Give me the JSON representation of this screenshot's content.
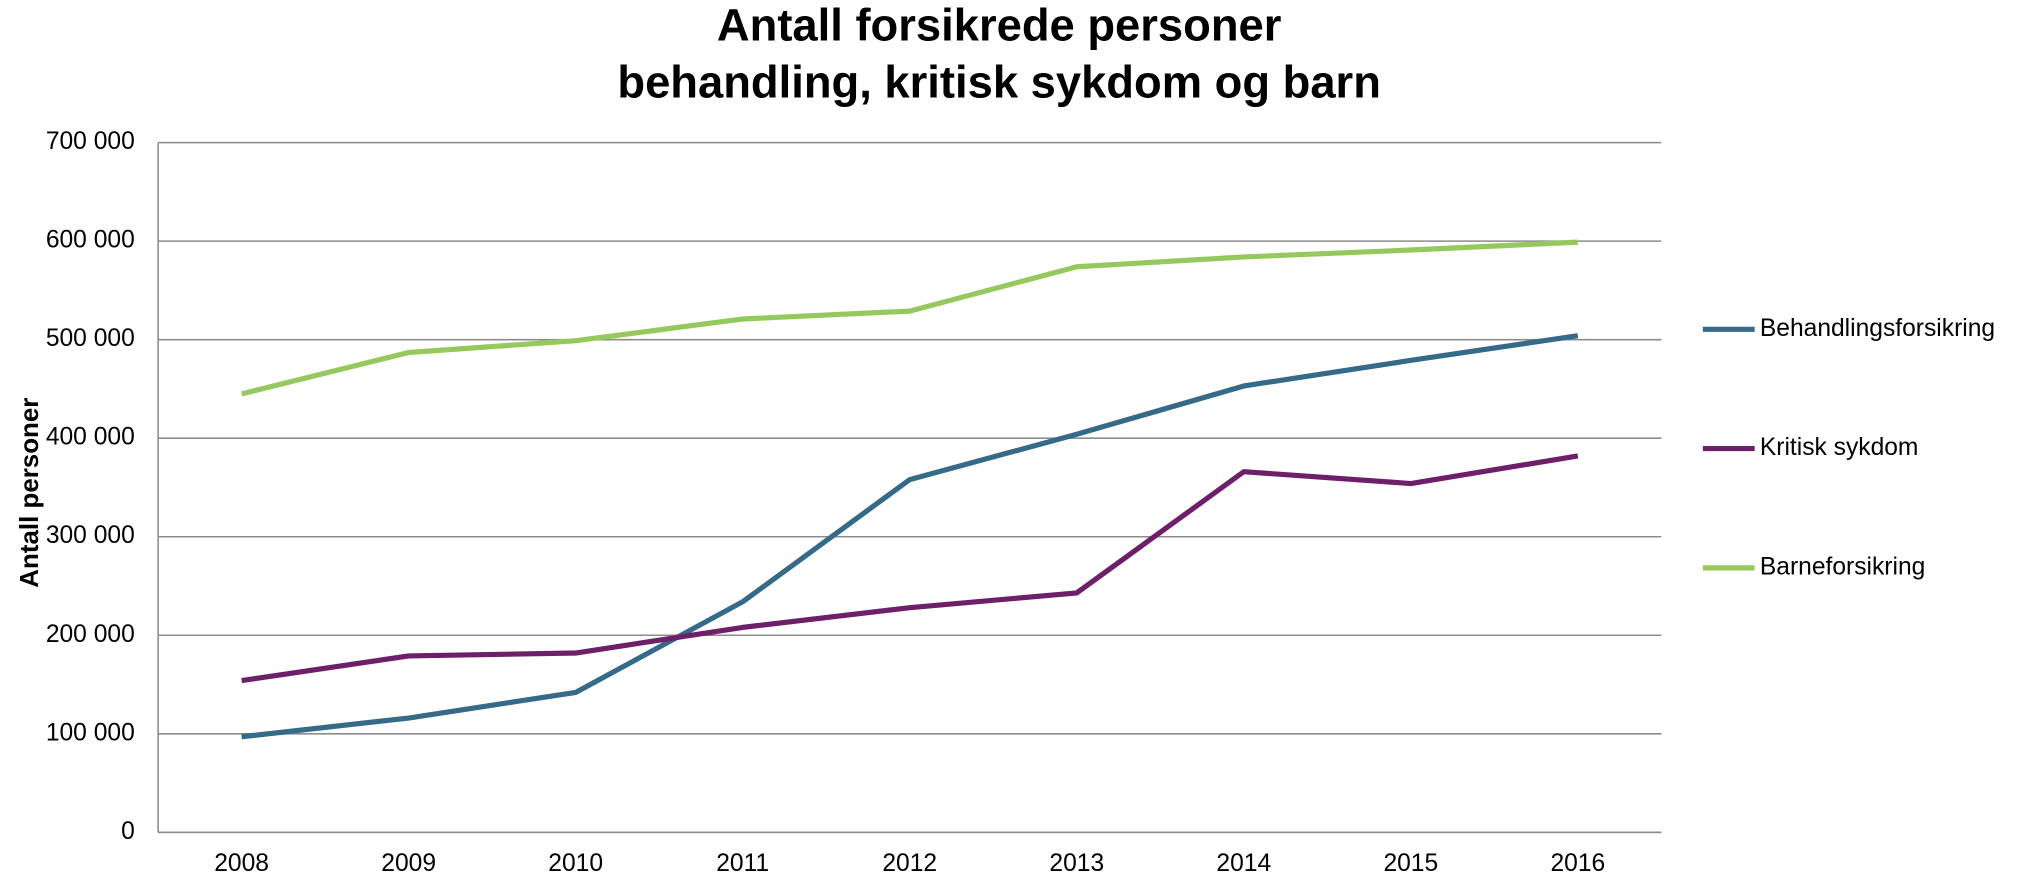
{
  "chart_data": {
    "type": "line",
    "title": [
      "Antall forsikrede personer",
      "behandling, kritisk sykdom og barn"
    ],
    "y_label": "Antall personer",
    "categories": [
      "2008",
      "2009",
      "2010",
      "2011",
      "2012",
      "2013",
      "2014",
      "2015",
      "2016"
    ],
    "series": [
      {
        "name": "Behandlingsforsikring",
        "color": "#366a89",
        "values": [
          97000,
          116000,
          142000,
          234000,
          358000,
          404000,
          453000,
          479000,
          504000
        ]
      },
      {
        "name": "Kritisk sykdom",
        "color": "#6e1f6a",
        "values": [
          154000,
          179000,
          182000,
          208000,
          228000,
          243000,
          366000,
          354000,
          382000
        ]
      },
      {
        "name": "Barneforsikring",
        "color": "#96c95d",
        "values": [
          445000,
          487000,
          499000,
          521000,
          529000,
          574000,
          584000,
          591000,
          599000
        ]
      }
    ],
    "ylim": [
      0,
      700000
    ],
    "yticks": [
      0,
      {
        "value": 100000,
        "label": "100 000"
      },
      {
        "value": 200000,
        "label": "200 000"
      },
      {
        "value": 300000,
        "label": "300 000"
      },
      {
        "value": 400000,
        "label": "400 000"
      },
      {
        "value": 500000,
        "label": "500 000"
      },
      {
        "value": 600000,
        "label": "600 000"
      },
      {
        "value": 700000,
        "label": "700 000"
      }
    ],
    "grid": true,
    "legend": "right"
  }
}
